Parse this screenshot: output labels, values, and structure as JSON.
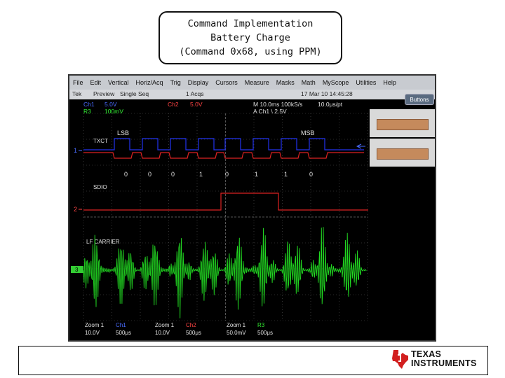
{
  "title": {
    "line1": "Command Implementation",
    "line2": "Battery Charge",
    "line3": "(Command 0x68, using PPM)"
  },
  "scope": {
    "menu": [
      "File",
      "Edit",
      "Vertical",
      "Horiz/Acq",
      "Trig",
      "Display",
      "Cursors",
      "Measure",
      "Masks",
      "Math",
      "MyScope",
      "Utilities",
      "Help"
    ],
    "status": {
      "brand": "Tek",
      "mode": "Preview",
      "seq": "Single Seq",
      "acqs": "1 Acqs",
      "datetime": "17 Mar 10 14:45:28",
      "buttons_label": "Buttons"
    },
    "readouts": {
      "ch1": "Ch1",
      "ch1_scale": "5.0V",
      "ch2": "Ch2",
      "ch2_scale": "5.0V",
      "r3": "R3",
      "r3_scale": "100mV",
      "timebase": "M 10.0ms 100kS/s",
      "pts": "10.0μs/pt",
      "trigger": "A Ch1 \\ 2.5V"
    },
    "labels": {
      "lsb": "LSB",
      "msb": "MSB",
      "txct": "TXCT",
      "sdio": "SDIO",
      "lf_carrier": "LF CARRIER",
      "marker1": "1",
      "marker2": "2",
      "marker3": "3"
    },
    "bits": [
      "0",
      "0",
      "0",
      "1",
      "0",
      "1",
      "1",
      "0"
    ],
    "bottom": [
      {
        "zoom": "Zoom 1",
        "zscale": "10.0V",
        "ch": "Ch1",
        "div": "500μs"
      },
      {
        "zoom": "Zoom 1",
        "zscale": "10.0V",
        "ch": "Ch2",
        "div": "500μs"
      },
      {
        "zoom": "Zoom 1",
        "zscale": "50.0mV",
        "ch": "R3",
        "div": "500μs"
      }
    ],
    "colors": {
      "ch1": "#2233ee",
      "ch2": "#dd2222",
      "r3": "#22dd22",
      "grid": "#555555"
    }
  },
  "footer": {
    "logo_line1": "TEXAS",
    "logo_line2": "INSTRUMENTS"
  }
}
